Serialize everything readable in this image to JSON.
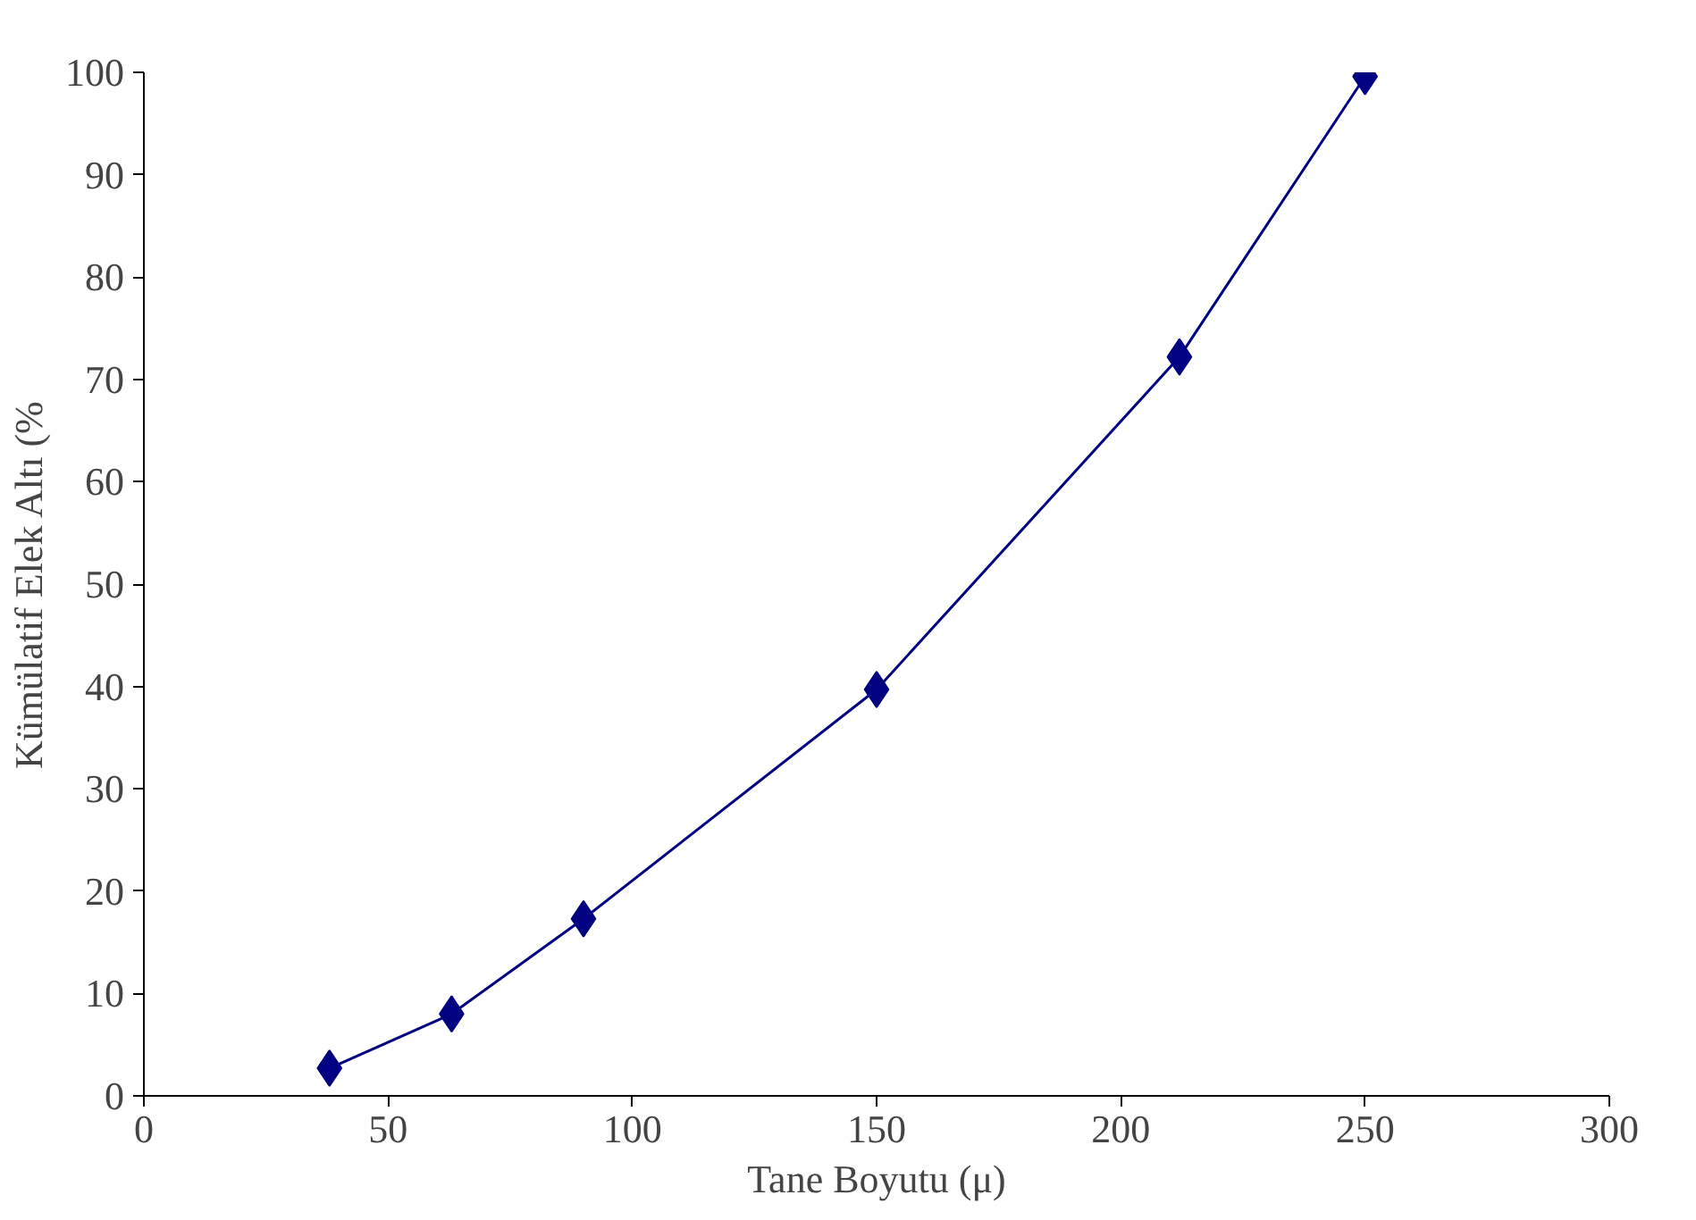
{
  "chart_data": {
    "type": "line",
    "xlabel": "Tane Boyutu (μ)",
    "ylabel": "Kümülatif Elek Altı (%",
    "x": [
      38,
      63,
      90,
      150,
      212,
      250
    ],
    "series": [
      {
        "color": "#000080",
        "values": [
          2.7,
          8.0,
          17.3,
          39.7,
          72.2,
          99.6
        ]
      }
    ],
    "xlim": [
      0,
      300
    ],
    "xticks": [
      0,
      50,
      100,
      150,
      200,
      250,
      300
    ],
    "ylim": [
      0,
      100
    ],
    "yticks": [
      0,
      10,
      20,
      30,
      40,
      50,
      60,
      70,
      80,
      90,
      100
    ],
    "grid": false,
    "marker": "diamond",
    "line_style": "solid"
  }
}
